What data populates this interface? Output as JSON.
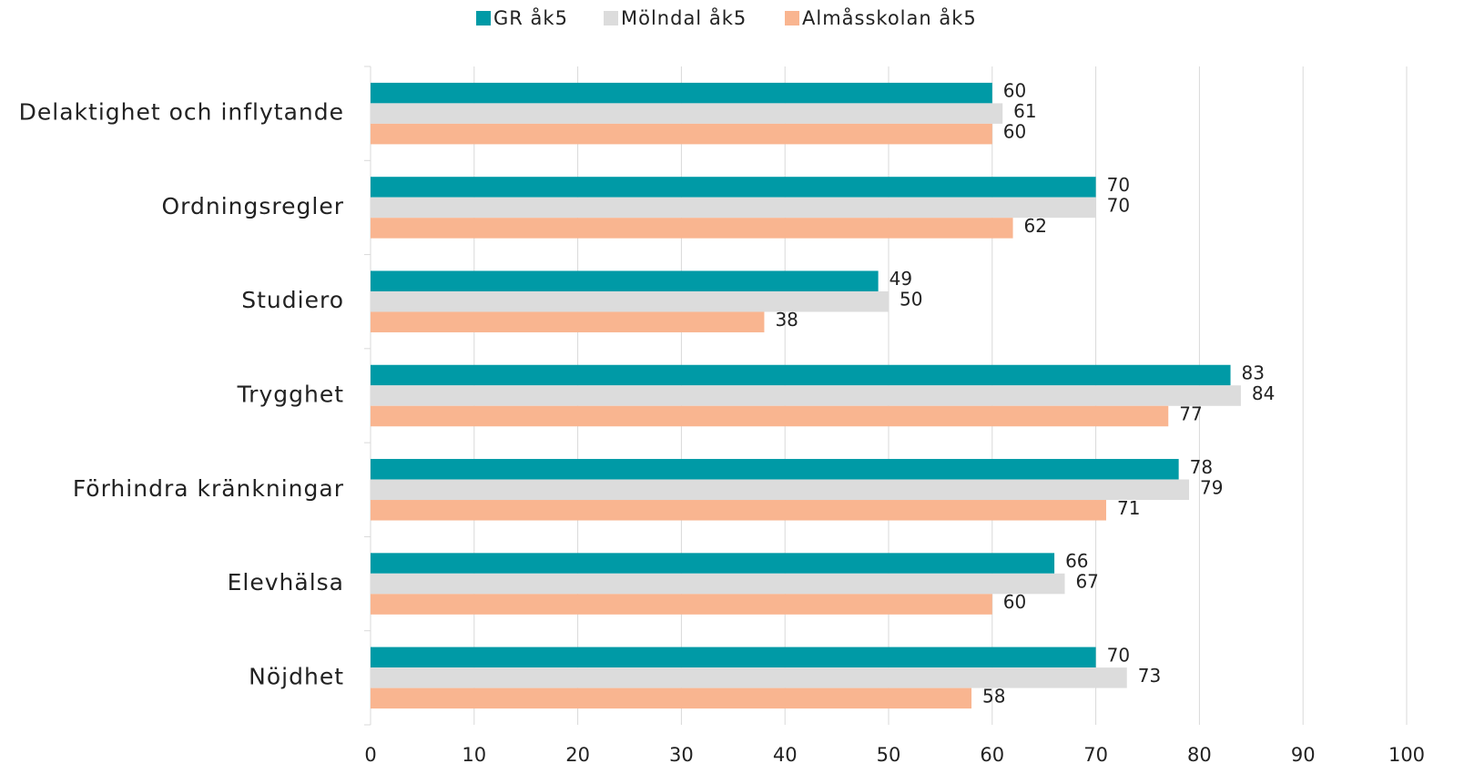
{
  "chart_data": {
    "type": "barh",
    "categories": [
      "Delaktighet och inflytande",
      "Ordningsregler",
      "Studiero",
      "Trygghet",
      "Förhindra kränkningar",
      "Elevhälsa",
      "Nöjdhet"
    ],
    "series": [
      {
        "name": "GR åk5",
        "color": "#009aa6",
        "values": [
          60,
          70,
          49,
          83,
          78,
          66,
          70
        ]
      },
      {
        "name": "Mölndal åk5",
        "color": "#dcdcdc",
        "values": [
          61,
          70,
          50,
          84,
          79,
          67,
          73
        ]
      },
      {
        "name": "Almåsskolan åk5",
        "color": "#f9b590",
        "values": [
          60,
          62,
          38,
          77,
          71,
          60,
          58
        ]
      }
    ],
    "xlim": [
      0,
      100
    ],
    "xticks": [
      0,
      10,
      20,
      30,
      40,
      50,
      60,
      70,
      80,
      90,
      100
    ],
    "grid": true,
    "legend": "top"
  }
}
